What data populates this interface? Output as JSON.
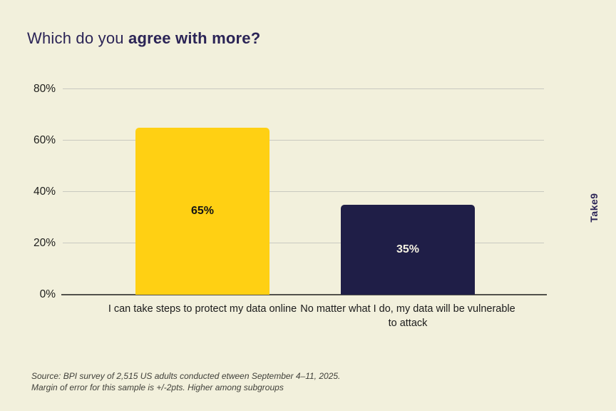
{
  "page": {
    "background": "#F2F0DC"
  },
  "title": {
    "prefix": "Which do you ",
    "bold": "agree with more?",
    "color": "#2B2456"
  },
  "chart_data": {
    "type": "bar",
    "title": "Which do you agree with more?",
    "categories": [
      "I can take steps to protect my data online",
      "No matter what I do, my data will be vulnerable to attack"
    ],
    "values": [
      65,
      35
    ],
    "value_labels": [
      "65%",
      "35%"
    ],
    "bar_colors": [
      "#FFD013",
      "#1F1E47"
    ],
    "value_label_colors": [
      "#141414",
      "#F4F1E1"
    ],
    "xlabel": "",
    "ylabel": "",
    "ylim": [
      0,
      80
    ],
    "yticks": [
      {
        "value": 0,
        "label": "0%"
      },
      {
        "value": 20,
        "label": "20%"
      },
      {
        "value": 40,
        "label": "40%"
      },
      {
        "value": 60,
        "label": "60%"
      },
      {
        "value": 80,
        "label": "80%"
      }
    ],
    "grid": true,
    "legend": false,
    "gridline_color": "#C9C9C0",
    "axis_line_color": "#52524B"
  },
  "footer": {
    "line1": "Source: BPI survey of 2,515 US adults conducted etween September 4–11, 2025.",
    "line2": "Margin of error for this sample is +/-2pts. Higher among subgroups"
  },
  "brand": {
    "label": "Take9",
    "color": "#2B2456"
  }
}
